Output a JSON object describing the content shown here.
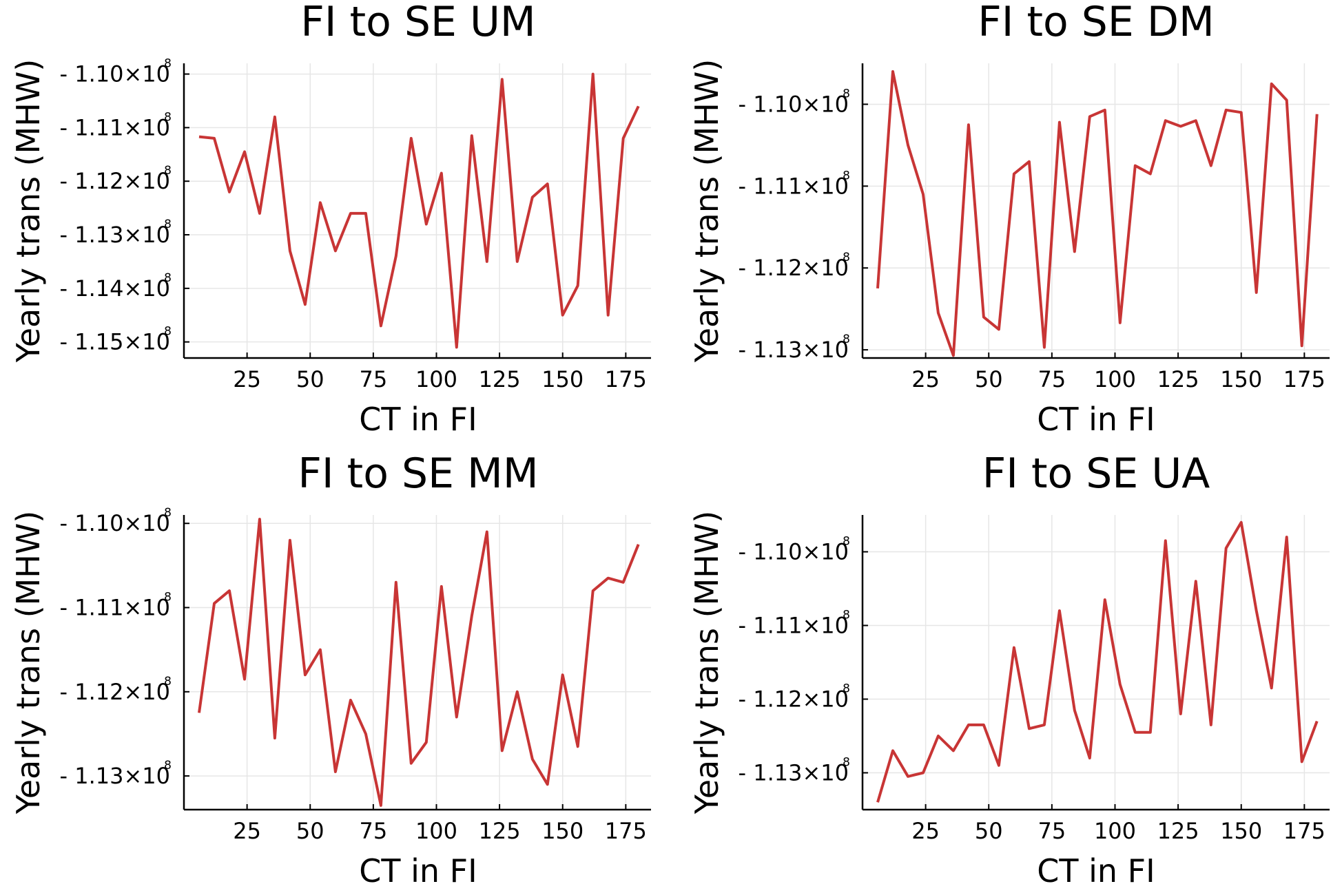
{
  "chart_data": [
    {
      "type": "line",
      "title": "FI to SE UM",
      "xlabel": "CT in FI",
      "ylabel": "Yearly trans (MHW)",
      "xticks": [
        25,
        50,
        75,
        100,
        125,
        150,
        175
      ],
      "xlim": [
        0,
        185
      ],
      "ylim": [
        -115.3,
        -109.8
      ],
      "yticks": [
        -110,
        -111,
        -112,
        -113,
        -114,
        -115
      ],
      "ytick_labels": [
        "- 1.10×10",
        "- 1.11×10",
        "- 1.12×10",
        "- 1.13×10",
        "- 1.14×10",
        "- 1.15×10"
      ],
      "ytick_exponent": "8",
      "grid": true,
      "y_unit": "millions",
      "series": [
        {
          "color": "#c83535",
          "x": [
            6,
            12,
            18,
            24,
            30,
            36,
            42,
            48,
            54,
            60,
            66,
            72,
            78,
            84,
            90,
            96,
            102,
            108,
            114,
            120,
            126,
            132,
            138,
            144,
            150,
            156,
            162,
            168,
            174,
            180
          ],
          "values": [
            -111.17,
            -111.2,
            -112.2,
            -111.45,
            -112.6,
            -110.8,
            -113.3,
            -114.3,
            -112.4,
            -113.3,
            -112.6,
            -112.6,
            -114.7,
            -113.4,
            -111.2,
            -112.8,
            -111.85,
            -115.1,
            -111.15,
            -113.5,
            -110.1,
            -113.5,
            -112.3,
            -112.05,
            -114.5,
            -113.95,
            -110.0,
            -114.5,
            -111.2,
            -110.6
          ]
        }
      ]
    },
    {
      "type": "line",
      "title": "FI to SE DM",
      "xlabel": "CT in FI",
      "ylabel": "Yearly trans (MHW)",
      "xticks": [
        25,
        50,
        75,
        100,
        125,
        150,
        175
      ],
      "xlim": [
        0,
        185
      ],
      "ylim": [
        -113.1,
        -109.5
      ],
      "yticks": [
        -110,
        -111,
        -112,
        -113
      ],
      "ytick_labels": [
        "- 1.10×10",
        "- 1.11×10",
        "- 1.12×10",
        "- 1.13×10"
      ],
      "ytick_exponent": "8",
      "grid": true,
      "y_unit": "millions",
      "series": [
        {
          "color": "#c83535",
          "x": [
            6,
            12,
            18,
            24,
            30,
            36,
            42,
            48,
            54,
            60,
            66,
            72,
            78,
            84,
            90,
            96,
            102,
            108,
            114,
            120,
            126,
            132,
            138,
            144,
            150,
            156,
            162,
            168,
            174,
            180
          ],
          "values": [
            -112.25,
            -109.6,
            -110.5,
            -111.1,
            -112.55,
            -113.07,
            -110.25,
            -112.6,
            -112.75,
            -110.85,
            -110.7,
            -112.97,
            -110.22,
            -111.8,
            -110.15,
            -110.07,
            -112.67,
            -110.75,
            -110.85,
            -110.2,
            -110.27,
            -110.2,
            -110.75,
            -110.07,
            -110.1,
            -112.3,
            -109.75,
            -109.95,
            -112.95,
            -110.12
          ]
        }
      ]
    },
    {
      "type": "line",
      "title": "FI to SE MM",
      "xlabel": "CT in FI",
      "ylabel": "Yearly trans (MHW)",
      "xticks": [
        25,
        50,
        75,
        100,
        125,
        150,
        175
      ],
      "xlim": [
        0,
        185
      ],
      "ylim": [
        -113.4,
        -109.9
      ],
      "yticks": [
        -110,
        -111,
        -112,
        -113
      ],
      "ytick_labels": [
        "- 1.10×10",
        "- 1.11×10",
        "- 1.12×10",
        "- 1.13×10"
      ],
      "ytick_exponent": "8",
      "grid": true,
      "y_unit": "millions",
      "series": [
        {
          "color": "#c83535",
          "x": [
            6,
            12,
            18,
            24,
            30,
            36,
            42,
            48,
            54,
            60,
            66,
            72,
            78,
            84,
            90,
            96,
            102,
            108,
            114,
            120,
            126,
            132,
            138,
            144,
            150,
            156,
            162,
            168,
            174,
            180
          ],
          "values": [
            -112.25,
            -110.95,
            -110.8,
            -111.85,
            -109.95,
            -112.55,
            -110.2,
            -111.8,
            -111.5,
            -112.95,
            -112.1,
            -112.5,
            -113.35,
            -110.7,
            -112.85,
            -112.6,
            -110.75,
            -112.3,
            -111.1,
            -110.1,
            -112.7,
            -112.0,
            -112.8,
            -113.1,
            -111.8,
            -112.65,
            -110.8,
            -110.65,
            -110.7,
            -110.25
          ]
        }
      ]
    },
    {
      "type": "line",
      "title": "FI to SE UA",
      "xlabel": "CT in FI",
      "ylabel": "Yearly trans (MHW)",
      "xticks": [
        25,
        50,
        75,
        100,
        125,
        150,
        175
      ],
      "xlim": [
        0,
        185
      ],
      "ylim": [
        -113.5,
        -109.5
      ],
      "yticks": [
        -110,
        -111,
        -112,
        -113
      ],
      "ytick_labels": [
        "- 1.10×10",
        "- 1.11×10",
        "- 1.12×10",
        "- 1.13×10"
      ],
      "ytick_exponent": "8",
      "grid": true,
      "y_unit": "millions",
      "series": [
        {
          "color": "#c83535",
          "x": [
            6,
            12,
            18,
            24,
            30,
            36,
            42,
            48,
            54,
            60,
            66,
            72,
            78,
            84,
            90,
            96,
            102,
            108,
            114,
            120,
            126,
            132,
            138,
            144,
            150,
            156,
            162,
            168,
            174,
            180
          ],
          "values": [
            -113.4,
            -112.7,
            -113.05,
            -113.0,
            -112.5,
            -112.7,
            -112.35,
            -112.35,
            -112.9,
            -111.3,
            -112.4,
            -112.35,
            -110.8,
            -112.15,
            -112.8,
            -110.65,
            -111.8,
            -112.45,
            -112.45,
            -109.85,
            -112.2,
            -110.4,
            -112.35,
            -109.95,
            -109.6,
            -110.8,
            -111.85,
            -109.8,
            -112.85,
            -112.3
          ]
        }
      ]
    }
  ]
}
